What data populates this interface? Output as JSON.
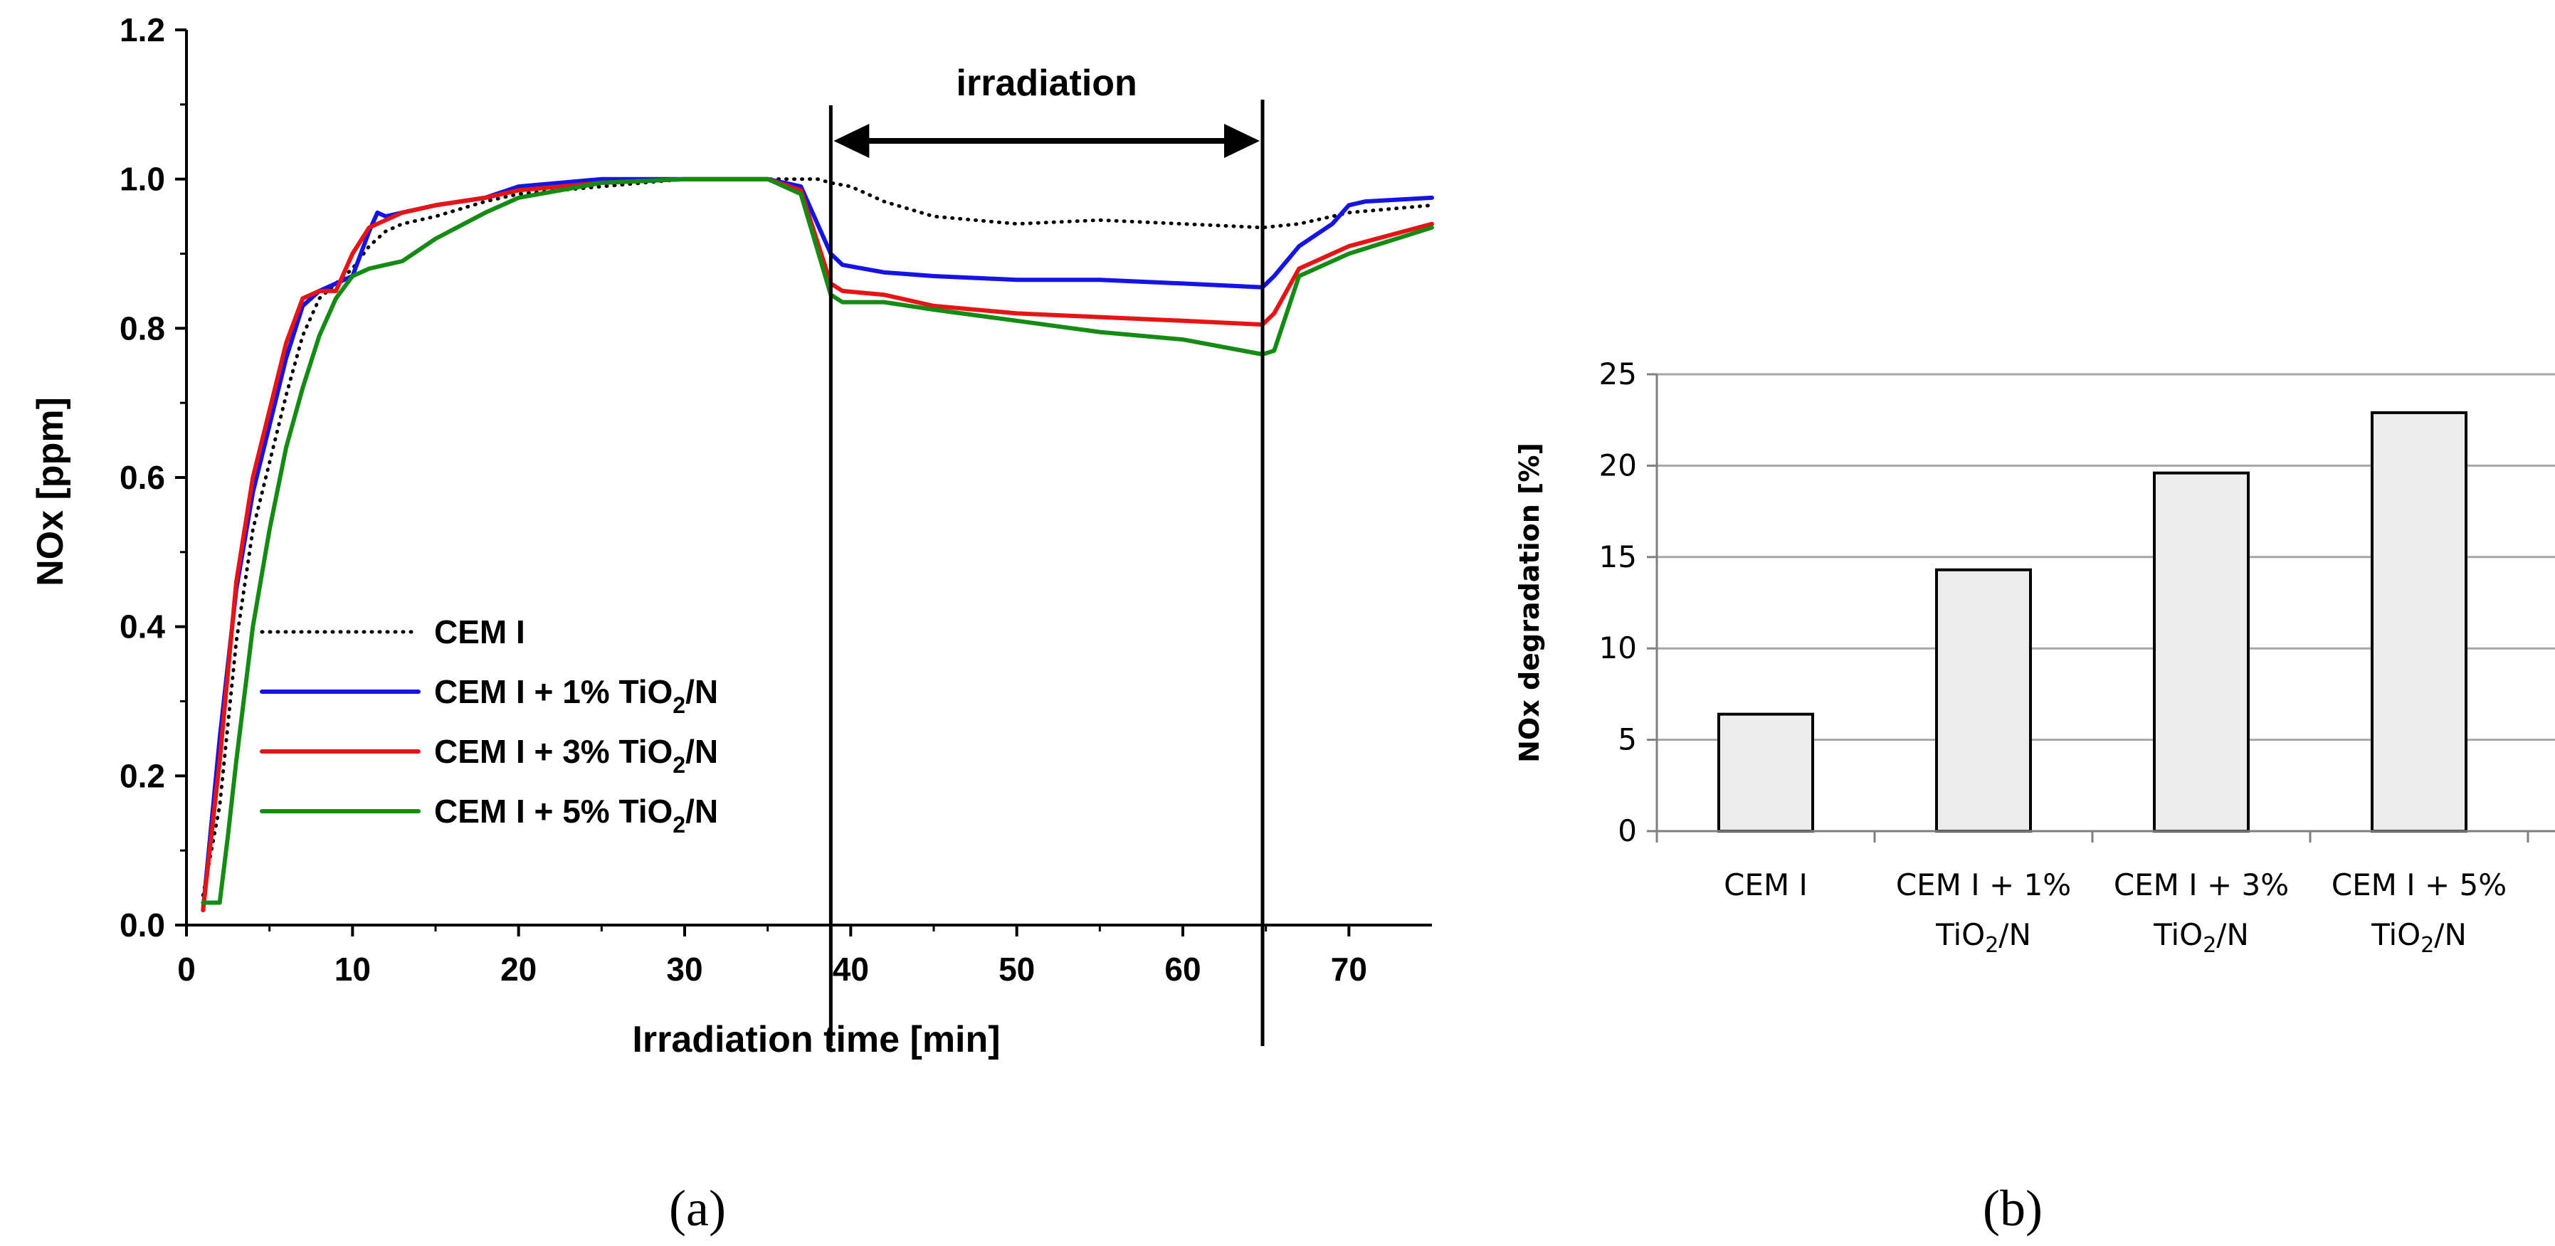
{
  "colors": {
    "cem": "#000000",
    "ti1": "#1414e6",
    "ti3": "#e61414",
    "ti5": "#148c14",
    "bar_fill": "#ececec",
    "grid": "#a6a6a6"
  },
  "panel_labels": {
    "a": "(a)",
    "b": "(b)"
  },
  "chart_data": [
    {
      "type": "line",
      "title": "",
      "xlabel": "Irradiation time [min]",
      "ylabel": "NOx [ppm]",
      "xlim": [
        0,
        75
      ],
      "ylim": [
        0.0,
        1.2
      ],
      "xticks": [
        "0",
        "10",
        "20",
        "30",
        "40",
        "50",
        "60",
        "70"
      ],
      "yticks": [
        "0.0",
        "0.2",
        "0.4",
        "0.6",
        "0.8",
        "1.0",
        "1.2"
      ],
      "annotation": {
        "text": "irradiation",
        "start": 38.8,
        "end": 64.8
      },
      "legend_position": "lower-left",
      "series": [
        {
          "name": "CEM I",
          "legend": {
            "main": "CEM I",
            "sub": "",
            "tail": ""
          },
          "style": "dotted",
          "color_key": "cem",
          "x": [
            1,
            2,
            3,
            4,
            5,
            6,
            7,
            8,
            9,
            10,
            11,
            12,
            13,
            15,
            18,
            20,
            25,
            30,
            35,
            38,
            38.8,
            40,
            42,
            45,
            50,
            55,
            60,
            64.8,
            67,
            70,
            75
          ],
          "y": [
            0.04,
            0.16,
            0.38,
            0.53,
            0.62,
            0.71,
            0.79,
            0.84,
            0.86,
            0.88,
            0.91,
            0.93,
            0.94,
            0.95,
            0.97,
            0.98,
            0.99,
            1.0,
            1.0,
            1.0,
            0.995,
            0.99,
            0.97,
            0.95,
            0.94,
            0.945,
            0.94,
            0.935,
            0.94,
            0.955,
            0.965
          ]
        },
        {
          "name": "CEM I + 1% TiO2/N",
          "legend": {
            "main": "CEM I + 1% TiO",
            "sub": "2",
            "tail": "/N"
          },
          "style": "solid",
          "color_key": "ti1",
          "x": [
            1,
            2,
            3,
            4,
            5,
            6,
            7,
            8,
            9,
            10,
            10.5,
            11,
            11.5,
            12,
            13,
            15,
            18,
            20,
            25,
            30,
            35,
            37,
            38.8,
            39.5,
            42,
            45,
            50,
            55,
            60,
            64.8,
            65.5,
            67,
            69,
            70,
            71,
            75
          ],
          "y": [
            0.02,
            0.25,
            0.45,
            0.58,
            0.67,
            0.76,
            0.83,
            0.85,
            0.86,
            0.87,
            0.9,
            0.93,
            0.955,
            0.95,
            0.955,
            0.965,
            0.975,
            0.99,
            1.0,
            1.0,
            1.0,
            0.99,
            0.9,
            0.885,
            0.875,
            0.87,
            0.865,
            0.865,
            0.86,
            0.855,
            0.87,
            0.91,
            0.94,
            0.965,
            0.97,
            0.975
          ]
        },
        {
          "name": "CEM I + 3% TiO2/N",
          "legend": {
            "main": "CEM I + 3% TiO",
            "sub": "2",
            "tail": "/N"
          },
          "style": "solid",
          "color_key": "ti3",
          "x": [
            1,
            2,
            3,
            4,
            5,
            6,
            7,
            8,
            9,
            10,
            11,
            12,
            13,
            15,
            18,
            20,
            25,
            30,
            35,
            37,
            38.8,
            39.5,
            42,
            45,
            50,
            55,
            60,
            64.8,
            65.5,
            67,
            70,
            75
          ],
          "y": [
            0.02,
            0.22,
            0.46,
            0.6,
            0.69,
            0.78,
            0.84,
            0.85,
            0.85,
            0.9,
            0.935,
            0.945,
            0.955,
            0.965,
            0.975,
            0.985,
            0.995,
            1.0,
            1.0,
            0.985,
            0.86,
            0.85,
            0.845,
            0.83,
            0.82,
            0.815,
            0.81,
            0.805,
            0.82,
            0.88,
            0.91,
            0.94
          ]
        },
        {
          "name": "CEM I + 5% TiO2/N",
          "legend": {
            "main": "CEM I + 5% TiO",
            "sub": "2",
            "tail": "/N"
          },
          "style": "solid",
          "color_key": "ti5",
          "x": [
            1,
            2,
            2.5,
            3,
            4,
            5,
            6,
            7,
            8,
            9,
            10,
            11,
            12,
            13,
            15,
            18,
            20,
            25,
            30,
            35,
            37,
            38.8,
            39.5,
            42,
            45,
            50,
            55,
            60,
            64.8,
            65.5,
            67,
            70,
            75
          ],
          "y": [
            0.03,
            0.03,
            0.12,
            0.22,
            0.4,
            0.53,
            0.64,
            0.72,
            0.79,
            0.84,
            0.87,
            0.88,
            0.885,
            0.89,
            0.92,
            0.955,
            0.975,
            0.995,
            1.0,
            1.0,
            0.98,
            0.845,
            0.835,
            0.835,
            0.825,
            0.81,
            0.795,
            0.785,
            0.765,
            0.77,
            0.87,
            0.9,
            0.935
          ]
        }
      ]
    },
    {
      "type": "bar",
      "title": "",
      "xlabel": "",
      "ylabel": "NOx degradation [%]",
      "ylim": [
        0,
        25
      ],
      "yticks": [
        "0",
        "5",
        "10",
        "15",
        "20",
        "25"
      ],
      "grid": true,
      "categories": [
        {
          "line1": "CEM I",
          "line2_main": "",
          "line2_sub": "",
          "line2_tail": ""
        },
        {
          "line1": "CEM I + 1%",
          "line2_main": "TiO",
          "line2_sub": "2",
          "line2_tail": "/N"
        },
        {
          "line1": "CEM I + 3%",
          "line2_main": "TiO",
          "line2_sub": "2",
          "line2_tail": "/N"
        },
        {
          "line1": "CEM I + 5%",
          "line2_main": "TiO",
          "line2_sub": "2",
          "line2_tail": "/N"
        }
      ],
      "values": [
        6.4,
        14.3,
        19.6,
        22.9
      ]
    }
  ]
}
